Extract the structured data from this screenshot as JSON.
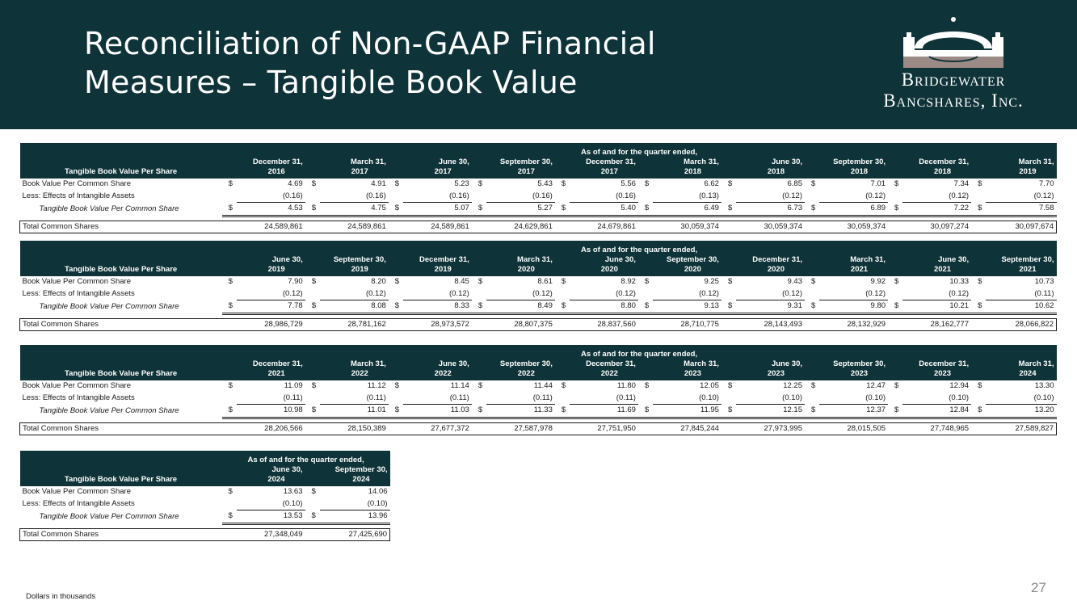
{
  "header": {
    "title_line1": "Reconciliation of Non-GAAP Financial",
    "title_line2": "Measures – Tangible Book Value",
    "logo_line1": "Bridgewater",
    "logo_line2": "Bancshares, Inc.",
    "colors": {
      "background": "#0e3338",
      "logo_steel": "#ffffff",
      "logo_rose": "#9c8a86"
    }
  },
  "row_labels": {
    "book_value": "Book Value Per Common Share",
    "intangibles": "Less: Effects of Intangible Assets",
    "tangible": "Tangible Book Value Per Common Share",
    "shares": "Total Common Shares",
    "currency": "$"
  },
  "tables": [
    {
      "header_label": "Tangible Book Value Per Share",
      "span_label": "As of and for the quarter ended,",
      "periods": [
        {
          "line1": "December 31,",
          "line2": "2016"
        },
        {
          "line1": "March 31,",
          "line2": "2017"
        },
        {
          "line1": "June 30,",
          "line2": "2017"
        },
        {
          "line1": "September 30,",
          "line2": "2017"
        },
        {
          "line1": "December 31,",
          "line2": "2017"
        },
        {
          "line1": "March 31,",
          "line2": "2018"
        },
        {
          "line1": "June 30,",
          "line2": "2018"
        },
        {
          "line1": "September 30,",
          "line2": "2018"
        },
        {
          "line1": "December 31,",
          "line2": "2018"
        },
        {
          "line1": "March 31,",
          "line2": "2019"
        }
      ],
      "book_value": [
        "4.69",
        "4.91",
        "5.23",
        "5.43",
        "5.56",
        "6.62",
        "6.85",
        "7.01",
        "7.34",
        "7.70"
      ],
      "intangibles": [
        "(0.16)",
        "(0.16)",
        "(0.16)",
        "(0.16)",
        "(0.16)",
        "(0.13)",
        "(0.12)",
        "(0.12)",
        "(0.12)",
        "(0.12)"
      ],
      "tangible": [
        "4.53",
        "4.75",
        "5.07",
        "5.27",
        "5.40",
        "6.49",
        "6.73",
        "6.89",
        "7.22",
        "7.58"
      ],
      "shares": [
        "24,589,861",
        "24,589,861",
        "24,589,861",
        "24,629,861",
        "24,679,861",
        "30,059,374",
        "30,059,374",
        "30,059,374",
        "30,097,274",
        "30,097,674"
      ]
    },
    {
      "header_label": "Tangible Book Value Per Share",
      "span_label": "As of and for the quarter ended,",
      "periods": [
        {
          "line1": "June 30,",
          "line2": "2019"
        },
        {
          "line1": "September 30,",
          "line2": "2019"
        },
        {
          "line1": "December 31,",
          "line2": "2019"
        },
        {
          "line1": "March 31,",
          "line2": "2020"
        },
        {
          "line1": "June 30,",
          "line2": "2020"
        },
        {
          "line1": "September 30,",
          "line2": "2020"
        },
        {
          "line1": "December 31,",
          "line2": "2020"
        },
        {
          "line1": "March 31,",
          "line2": "2021"
        },
        {
          "line1": "June 30,",
          "line2": "2021"
        },
        {
          "line1": "September 30,",
          "line2": "2021"
        }
      ],
      "book_value": [
        "7.90",
        "8.20",
        "8.45",
        "8.61",
        "8.92",
        "9.25",
        "9.43",
        "9.92",
        "10.33",
        "10.73"
      ],
      "intangibles": [
        "(0.12)",
        "(0.12)",
        "(0.12)",
        "(0.12)",
        "(0.12)",
        "(0.12)",
        "(0.12)",
        "(0.12)",
        "(0.12)",
        "(0.11)"
      ],
      "tangible": [
        "7.78",
        "8.08",
        "8.33",
        "8.49",
        "8.80",
        "9.13",
        "9.31",
        "9.80",
        "10.21",
        "10.62"
      ],
      "shares": [
        "28,986,729",
        "28,781,162",
        "28,973,572",
        "28,807,375",
        "28,837,560",
        "28,710,775",
        "28,143,493",
        "28,132,929",
        "28,162,777",
        "28,066,822"
      ]
    },
    {
      "header_label": "Tangible Book Value Per Share",
      "span_label": "As of and for the quarter ended,",
      "periods": [
        {
          "line1": "December 31,",
          "line2": "2021"
        },
        {
          "line1": "March 31,",
          "line2": "2022"
        },
        {
          "line1": "June 30,",
          "line2": "2022"
        },
        {
          "line1": "September 30,",
          "line2": "2022"
        },
        {
          "line1": "December 31,",
          "line2": "2022"
        },
        {
          "line1": "March 31,",
          "line2": "2023"
        },
        {
          "line1": "June 30,",
          "line2": "2023"
        },
        {
          "line1": "September 30,",
          "line2": "2023"
        },
        {
          "line1": "December 31,",
          "line2": "2023"
        },
        {
          "line1": "March 31,",
          "line2": "2024"
        }
      ],
      "book_value": [
        "11.09",
        "11.12",
        "11.14",
        "11.44",
        "11.80",
        "12.05",
        "12.25",
        "12.47",
        "12.94",
        "13.30"
      ],
      "intangibles": [
        "(0.11)",
        "(0.11)",
        "(0.11)",
        "(0.11)",
        "(0.11)",
        "(0.10)",
        "(0.10)",
        "(0.10)",
        "(0.10)",
        "(0.10)"
      ],
      "tangible": [
        "10.98",
        "11.01",
        "11.03",
        "11.33",
        "11.69",
        "11.95",
        "12.15",
        "12.37",
        "12.84",
        "13.20"
      ],
      "shares": [
        "28,206,566",
        "28,150,389",
        "27,677,372",
        "27,587,978",
        "27,751,950",
        "27,845,244",
        "27,973,995",
        "28,015,505",
        "27,748,965",
        "27,589,827"
      ]
    },
    {
      "header_label": "Tangible Book Value Per Share",
      "span_label": "As of and for the quarter ended,",
      "periods": [
        {
          "line1": "June 30,",
          "line2": "2024"
        },
        {
          "line1": "September 30,",
          "line2": "2024"
        }
      ],
      "book_value": [
        "13.63",
        "14.06"
      ],
      "intangibles": [
        "(0.10)",
        "(0.10)"
      ],
      "tangible": [
        "13.53",
        "13.96"
      ],
      "shares": [
        "27,348,049",
        "27,425,690"
      ]
    }
  ],
  "footer": {
    "note": "Dollars in thousands",
    "page_number": "27"
  }
}
